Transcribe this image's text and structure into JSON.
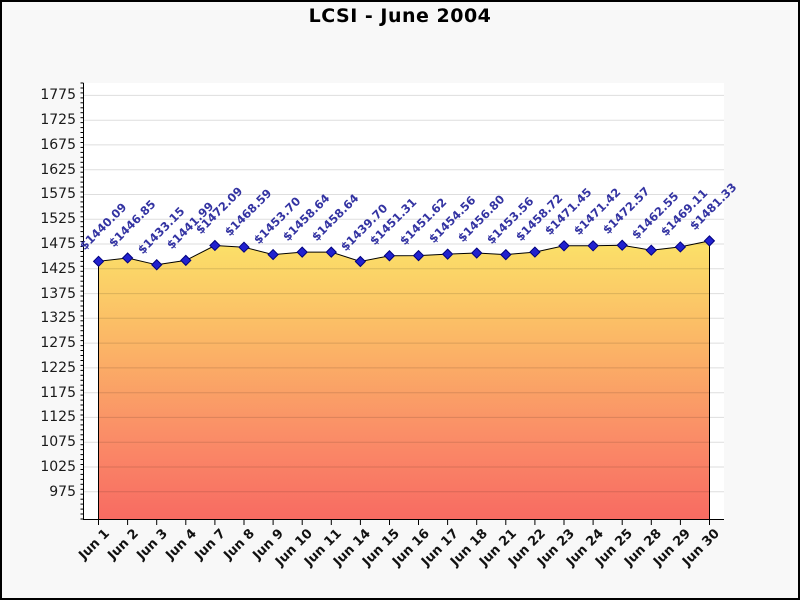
{
  "window": {
    "title": "LCSI - June 2004"
  },
  "chart_data": {
    "type": "area",
    "title": "LCSI - June 2004",
    "legend": "none",
    "grid": true,
    "categories": [
      "Jun 1",
      "Jun 2",
      "Jun 3",
      "Jun 4",
      "Jun 7",
      "Jun 8",
      "Jun 9",
      "Jun 10",
      "Jun 11",
      "Jun 14",
      "Jun 15",
      "Jun 16",
      "Jun 17",
      "Jun 18",
      "Jun 21",
      "Jun 22",
      "Jun 23",
      "Jun 24",
      "Jun 25",
      "Jun 28",
      "Jun 29",
      "Jun 30"
    ],
    "values": [
      1440.09,
      1446.85,
      1433.15,
      1441.99,
      1472.09,
      1468.59,
      1453.7,
      1458.64,
      1458.64,
      1439.7,
      1451.31,
      1451.62,
      1454.56,
      1456.8,
      1453.56,
      1458.72,
      1471.45,
      1471.42,
      1472.57,
      1462.55,
      1469.11,
      1481.33
    ],
    "point_labels": [
      "$1440.09",
      "$1446.85",
      "$1433.15",
      "$1441.99",
      "$1472.09",
      "$1468.59",
      "$1453.70",
      "$1458.64",
      "$1458.64",
      "$1439.70",
      "$1451.31",
      "$1451.62",
      "$1454.56",
      "$1456.80",
      "$1453.56",
      "$1458.72",
      "$1471.45",
      "$1471.42",
      "$1472.57",
      "$1462.55",
      "$1469.11",
      "$1481.33"
    ],
    "y_tick_labels": [
      "975",
      "1025",
      "1075",
      "1125",
      "1175",
      "1225",
      "1275",
      "1325",
      "1375",
      "1425",
      "1475",
      "1525",
      "1575",
      "1625",
      "1675",
      "1725",
      "1775"
    ],
    "ylim": [
      920,
      1800
    ],
    "y_major_step": 50,
    "y_minor_step": 10,
    "colors": {
      "page_bg": "#F8F8F8",
      "plot_bg": "#FFFFFF",
      "grid_line_alpha": "rgba(0,0,0,0.13)",
      "axis": "#000000",
      "line": "#000000",
      "marker_fill": "#2121CE",
      "marker_border": "#00007E",
      "point_label": "#3333A2",
      "x_label": "#111111",
      "y_label": "#1a1a1a",
      "area_top": "#FDF283",
      "area_upper": "#FBE468",
      "area_mid": "#FBB566",
      "area_lower": "#FA8B67",
      "area_bottom": "#F86B62"
    }
  }
}
